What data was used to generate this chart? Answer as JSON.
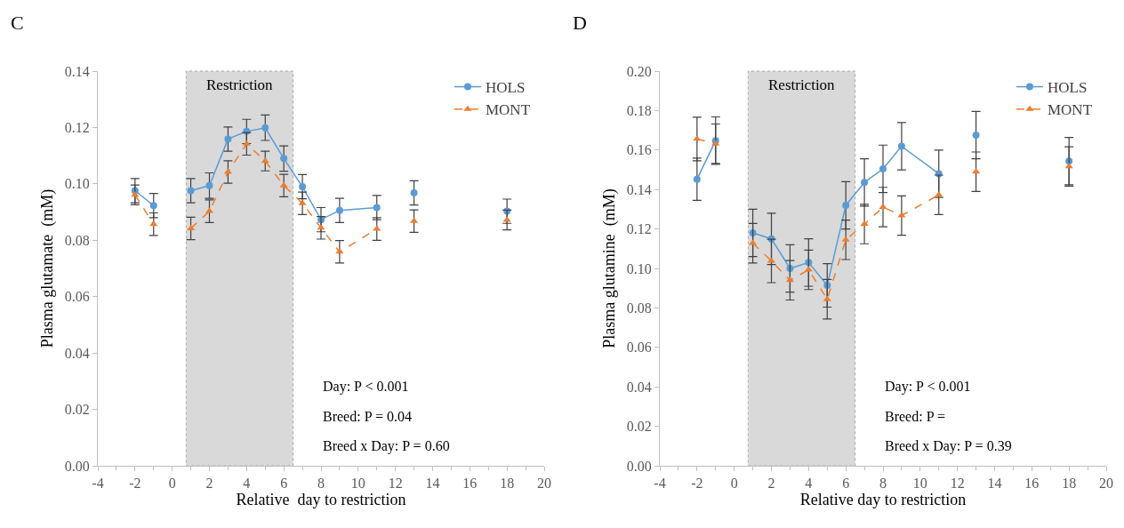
{
  "chart_data": [
    {
      "type": "line",
      "title": "C",
      "xlabel": "Relative  day to restriction",
      "ylabel": "Plasma glutamate  (mM)",
      "x": [
        -2,
        -1,
        0,
        1,
        2,
        3,
        4,
        5,
        6,
        7,
        8,
        9,
        11,
        12,
        13,
        15,
        18
      ],
      "series": [
        {
          "name": "HOLS",
          "color": "#5b9bd5",
          "marker": "circle",
          "line_style": "solid",
          "values": [
            0.0976,
            0.0923,
            null,
            0.0976,
            0.0994,
            0.1159,
            0.1186,
            0.1199,
            0.109,
            0.099,
            0.0873,
            0.0906,
            0.0916,
            null,
            0.0968,
            null,
            0.0903
          ],
          "errors": [
            0.0043,
            0.0043,
            null,
            0.0043,
            0.0045,
            0.0043,
            0.0043,
            0.0045,
            0.0045,
            0.0043,
            0.0043,
            0.0043,
            0.0043,
            null,
            0.0043,
            null,
            0.0043
          ]
        },
        {
          "name": "MONT",
          "color": "#ed7d31",
          "marker": "triangle",
          "line_style": "dashed",
          "values": [
            0.0961,
            0.0857,
            null,
            0.0842,
            0.0903,
            0.1042,
            0.1142,
            0.1081,
            0.0994,
            0.0931,
            0.0844,
            0.0759,
            0.084,
            null,
            0.0868,
            null,
            0.0872
          ],
          "errors": [
            0.0035,
            0.004,
            null,
            0.004,
            0.004,
            0.004,
            0.004,
            0.0035,
            0.004,
            0.004,
            0.004,
            0.004,
            0.004,
            null,
            0.004,
            null,
            0.0035
          ]
        }
      ],
      "xlim": [
        -4,
        20
      ],
      "xticks": [
        -4,
        -2,
        0,
        2,
        4,
        6,
        8,
        10,
        12,
        14,
        16,
        18,
        20
      ],
      "ylim": [
        0,
        0.14
      ],
      "yticks": [
        {
          "value": 0,
          "label": "0.00"
        },
        {
          "value": 0.02,
          "label": "0.02"
        },
        {
          "value": 0.04,
          "label": "0.04"
        },
        {
          "value": 0.06,
          "label": "0.06"
        },
        {
          "value": 0.08,
          "label": "0.08"
        },
        {
          "value": 0.1,
          "label": "0.10"
        },
        {
          "value": 0.12,
          "label": "0.12"
        },
        {
          "value": 0.14,
          "label": "0.14"
        }
      ],
      "bands": [
        {
          "axis": "x",
          "from": 0.75,
          "to": 6.5,
          "label": "Restriction",
          "color": "#d9d9d9"
        }
      ],
      "annotations": [
        "Day: P < 0.001",
        "Breed: P = 0.04",
        "Breed x Day: P = 0.60"
      ],
      "grid": false,
      "legend": "top right"
    },
    {
      "type": "line",
      "title": "D",
      "xlabel": "Relative day to restriction",
      "ylabel": "Plasma glutamine  (mM)",
      "x": [
        -2,
        -1,
        0,
        1,
        2,
        3,
        4,
        5,
        6,
        7,
        8,
        9,
        11,
        12,
        13,
        15,
        18
      ],
      "series": [
        {
          "name": "HOLS",
          "color": "#5b9bd5",
          "marker": "circle",
          "line_style": "solid",
          "values": [
            0.1452,
            0.1648,
            null,
            0.118,
            0.115,
            0.1,
            0.103,
            0.0914,
            0.132,
            0.1436,
            0.1505,
            0.1619,
            0.148,
            null,
            0.1676,
            null,
            0.1544
          ],
          "errors": [
            0.0107,
            0.012,
            null,
            0.012,
            0.013,
            0.012,
            0.012,
            0.011,
            0.012,
            0.012,
            0.012,
            0.012,
            0.012,
            null,
            0.012,
            null,
            0.012
          ]
        },
        {
          "name": "MONT",
          "color": "#ed7d31",
          "marker": "triangle",
          "line_style": "dashed",
          "values": [
            0.1656,
            0.1632,
            null,
            0.1128,
            0.1038,
            0.094,
            0.0993,
            0.0844,
            0.1145,
            0.1225,
            0.1311,
            0.1268,
            0.1373,
            null,
            0.149,
            null,
            0.1517
          ],
          "errors": [
            0.011,
            0.01,
            null,
            0.01,
            0.011,
            0.01,
            0.01,
            0.01,
            0.01,
            0.01,
            0.01,
            0.01,
            0.01,
            null,
            0.01,
            null,
            0.01
          ]
        }
      ],
      "xlim": [
        -4,
        20
      ],
      "xticks": [
        -4,
        -2,
        0,
        2,
        4,
        6,
        8,
        10,
        12,
        14,
        16,
        18,
        20
      ],
      "ylim": [
        0,
        0.2
      ],
      "yticks": [
        {
          "value": 0,
          "label": "0.00"
        },
        {
          "value": 0.02,
          "label": "0.02"
        },
        {
          "value": 0.04,
          "label": "0.04"
        },
        {
          "value": 0.06,
          "label": "0.06"
        },
        {
          "value": 0.08,
          "label": "0.08"
        },
        {
          "value": 0.1,
          "label": "0.10"
        },
        {
          "value": 0.12,
          "label": "0.12"
        },
        {
          "value": 0.14,
          "label": "0.14"
        },
        {
          "value": 0.16,
          "label": "0.16"
        },
        {
          "value": 0.18,
          "label": "0.18"
        },
        {
          "value": 0.2,
          "label": "0.20"
        }
      ],
      "bands": [
        {
          "axis": "x",
          "from": 0.75,
          "to": 6.5,
          "label": "Restriction",
          "color": "#d9d9d9"
        }
      ],
      "annotations": [
        "Day: P < 0.001",
        "Breed: P =",
        "Breed x Day: P = 0.39"
      ],
      "grid": false,
      "legend": "top right"
    }
  ]
}
